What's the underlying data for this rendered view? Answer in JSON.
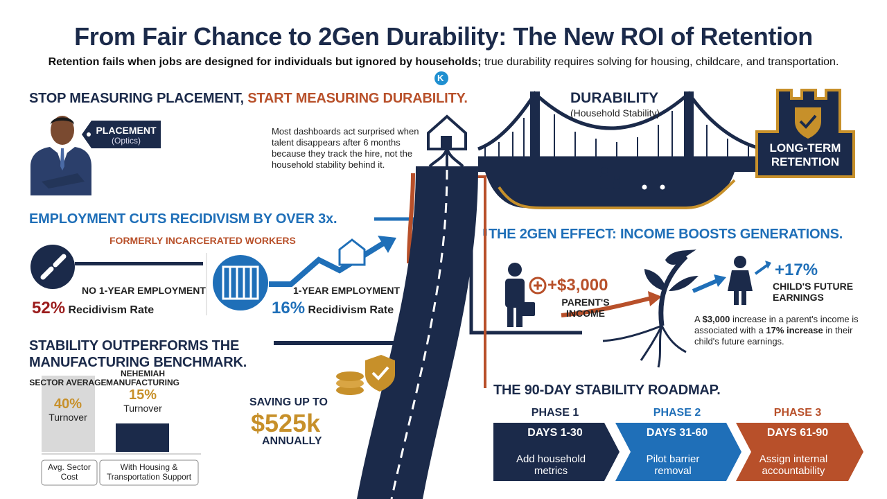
{
  "header": {
    "title": "From Fair Chance to 2Gen Durability: The New ROI of Retention",
    "subtitle_bold": "Retention fails when jobs are designed for individuals but ignored by households;",
    "subtitle_rest": "true durability requires solving for housing, childcare, and transportation.",
    "logo": "K"
  },
  "placement": {
    "heading_a": "STOP MEASURING PLACEMENT,",
    "heading_b": "START MEASURING DURABILITY.",
    "tag": "PLACEMENT",
    "tag_sub": "(Optics)",
    "note": "Most dashboards act surprised when talent disappears after 6 months because they track the hire, not the household stability behind it."
  },
  "durability": {
    "title": "DURABILITY",
    "sub": "(Household Stability)",
    "badge": "LONG-TERM RETENTION"
  },
  "recidivism": {
    "heading": "EMPLOYMENT CUTS RECIDIVISM BY OVER 3x.",
    "subheading": "FORMERLY INCARCERATED WORKERS",
    "groups": [
      {
        "label": "NO 1-YEAR EMPLOYMENT",
        "rate": "52%",
        "rate_label": "Recidivism Rate"
      },
      {
        "label": "1-YEAR EMPLOYMENT",
        "rate": "16%",
        "rate_label": "Recidivism Rate"
      }
    ]
  },
  "benchmark": {
    "heading": "STABILITY OUTPERFORMS THE MANUFACTURING BENCHMARK.",
    "bars": [
      {
        "name": "SECTOR AVERAGE",
        "value": 40,
        "value_label": "40%",
        "unit": "Turnover",
        "caption": "Avg. Sector Cost"
      },
      {
        "name": "NEHEMIAH MANUFACTURING",
        "value": 15,
        "value_label": "15%",
        "unit": "Turnover",
        "caption": "With Housing & Transportation Support"
      }
    ],
    "saving_pre": "SAVING UP TO",
    "saving_amount": "$525k",
    "saving_post": "ANNUALLY"
  },
  "twogen": {
    "heading": "THE 2GEN EFFECT: INCOME BOOSTS GENERATIONS.",
    "parent_amount": "+$3,000",
    "parent_label": "PARENT'S INCOME",
    "child_amount": "+17%",
    "child_label": "CHILD'S FUTURE EARNINGS",
    "note": [
      "A",
      "$3,000",
      "increase in a parent's income is associated with a",
      "17% increase",
      "in their child's future earnings."
    ]
  },
  "roadmap": {
    "heading": "THE 90-DAY STABILITY ROADMAP.",
    "phases": [
      {
        "phase": "PHASE 1",
        "days": "DAYS 1-30",
        "action": "Add household metrics"
      },
      {
        "phase": "PHASE 2",
        "days": "DAYS 31-60",
        "action": "Pilot barrier removal"
      },
      {
        "phase": "PHASE 3",
        "days": "DAYS 61-90",
        "action": "Assign internal accountability"
      }
    ]
  }
}
